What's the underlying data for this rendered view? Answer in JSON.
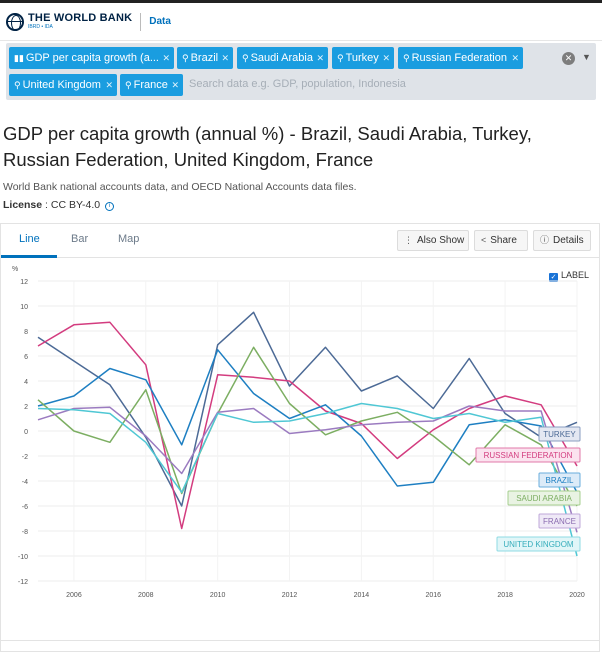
{
  "header": {
    "logo_text": "THE WORLD BANK",
    "logo_sub": "IBRD • IDA",
    "data_link": "Data"
  },
  "chips": [
    {
      "label": "GDP per capita growth (a...",
      "icon": "bar-chart-icon"
    },
    {
      "label": "Brazil",
      "icon": "map-marker-icon"
    },
    {
      "label": "Saudi Arabia",
      "icon": "map-marker-icon"
    },
    {
      "label": "Turkey",
      "icon": "map-marker-icon"
    },
    {
      "label": "Russian Federation",
      "icon": "map-marker-icon"
    },
    {
      "label": "United Kingdom",
      "icon": "map-marker-icon"
    },
    {
      "label": "France",
      "icon": "map-marker-icon"
    }
  ],
  "search": {
    "placeholder": "Search data e.g. GDP, population, Indonesia"
  },
  "page": {
    "title": "GDP per capita growth (annual %) - Brazil, Saudi Arabia, Turkey, Russian Federation, United Kingdom, France",
    "source": "World Bank national accounts data, and OECD National Accounts data files.",
    "license_label": "License",
    "license_value": " : CC BY-4.0"
  },
  "tabs": [
    "Line",
    "Bar",
    "Map"
  ],
  "buttons": {
    "also_show": "Also Show",
    "share": "Share",
    "details": "Details"
  },
  "label_toggle": "LABEL",
  "chart_data": {
    "type": "line",
    "title": "GDP per capita growth (annual %)",
    "ylabel": "%",
    "xlabel": "",
    "ylim": [
      -12,
      12
    ],
    "yticks": [
      -12,
      -10,
      -8,
      -6,
      -4,
      -2,
      0,
      2,
      4,
      6,
      8,
      10,
      12
    ],
    "xticks": [
      2006,
      2008,
      2010,
      2012,
      2014,
      2016,
      2018,
      2020
    ],
    "x": [
      2005,
      2006,
      2007,
      2008,
      2009,
      2010,
      2011,
      2012,
      2013,
      2014,
      2015,
      2016,
      2017,
      2018,
      2019,
      2020
    ],
    "series": [
      {
        "name": "TURKEY",
        "color": "#4c6a96",
        "label_bg": "#e4e8f2",
        "label_border": "#8a9ec0",
        "label_text": "#4c6a96",
        "values": [
          7.5,
          5.6,
          3.7,
          -0.5,
          -6.0,
          6.9,
          9.5,
          3.6,
          6.7,
          3.2,
          4.4,
          1.8,
          5.8,
          1.4,
          -0.5,
          0.7
        ]
      },
      {
        "name": "RUSSIAN FEDERATION",
        "color": "#d33c7f",
        "label_bg": "#fbe3ef",
        "label_border": "#e27aa9",
        "label_text": "#d33c7f",
        "values": [
          6.8,
          8.5,
          8.7,
          5.3,
          -7.8,
          4.5,
          4.3,
          4.0,
          1.6,
          0.6,
          -2.2,
          0.1,
          1.8,
          2.8,
          2.1,
          -2.8
        ]
      },
      {
        "name": "BRAZIL",
        "color": "#1e7fc2",
        "label_bg": "#dcebf8",
        "label_border": "#6aaedd",
        "label_text": "#1e7fc2",
        "values": [
          2.0,
          2.8,
          5.0,
          4.1,
          -1.1,
          6.5,
          3.0,
          1.0,
          2.1,
          -0.4,
          -4.4,
          -4.1,
          0.5,
          0.9,
          0.4,
          -4.9
        ]
      },
      {
        "name": "SAUDI ARABIA",
        "color": "#7cae62",
        "label_bg": "#e9f3e3",
        "label_border": "#a6cf8f",
        "label_text": "#7cae62",
        "values": [
          2.5,
          0.0,
          -0.9,
          3.3,
          -5.0,
          1.4,
          6.7,
          2.2,
          -0.3,
          0.8,
          1.5,
          -0.4,
          -2.7,
          0.5,
          -1.1,
          -6.0
        ]
      },
      {
        "name": "FRANCE",
        "color": "#9b7bc0",
        "label_bg": "#efe9f7",
        "label_border": "#bfa8da",
        "label_text": "#8a6cb0",
        "values": [
          0.9,
          1.8,
          1.9,
          -0.4,
          -3.4,
          1.5,
          1.8,
          -0.2,
          0.1,
          0.5,
          0.7,
          0.8,
          2.0,
          1.6,
          1.6,
          -8.1
        ]
      },
      {
        "name": "UNITED KINGDOM",
        "color": "#4fc7d4",
        "label_bg": "#e1f6f8",
        "label_border": "#8fdbe3",
        "label_text": "#36adbb",
        "values": [
          1.8,
          1.7,
          1.4,
          -0.9,
          -4.9,
          1.4,
          0.7,
          0.8,
          1.4,
          2.2,
          1.8,
          1.0,
          1.4,
          0.7,
          1.1,
          -10.0
        ]
      }
    ]
  }
}
